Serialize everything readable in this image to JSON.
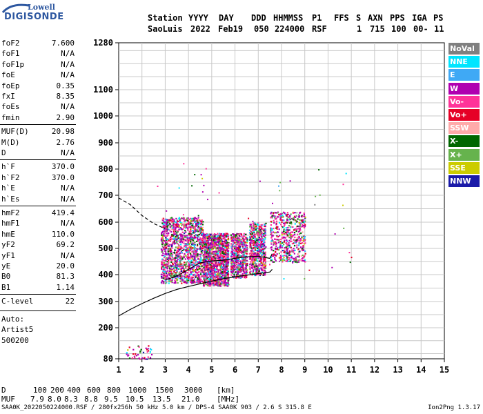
{
  "logo": {
    "top": "Lowell",
    "main": "DIGISONDE"
  },
  "header": {
    "labels": [
      "Station",
      "YYYY",
      "DAY",
      "DDD",
      "HHMMSS",
      "P1",
      "FFS",
      "S",
      "AXN",
      "PPS",
      "IGA",
      "PS"
    ],
    "values": [
      "SaoLuis",
      "2022",
      "Feb19",
      "050",
      "224000",
      "RSF",
      "",
      "1",
      "715",
      "100",
      "00-",
      "11"
    ]
  },
  "params": [
    {
      "label": "foF2",
      "value": "7.600"
    },
    {
      "label": "foF1",
      "value": "N/A"
    },
    {
      "label": "foF1p",
      "value": "N/A"
    },
    {
      "label": "foE",
      "value": "N/A"
    },
    {
      "label": "foEp",
      "value": "0.35"
    },
    {
      "label": "fxI",
      "value": "8.35"
    },
    {
      "label": "foEs",
      "value": "N/A"
    },
    {
      "label": "fmin",
      "value": "2.90"
    },
    {
      "label": "MUF(D)",
      "value": "20.98"
    },
    {
      "label": "M(D)",
      "value": "2.76"
    },
    {
      "label": "D",
      "value": "N/A"
    },
    {
      "label": "h`F",
      "value": "370.0"
    },
    {
      "label": "h`F2",
      "value": "370.0"
    },
    {
      "label": "h`E",
      "value": "N/A"
    },
    {
      "label": "h`Es",
      "value": "N/A"
    },
    {
      "label": "hmF2",
      "value": "419.4"
    },
    {
      "label": "hmF1",
      "value": "N/A"
    },
    {
      "label": "hmE",
      "value": "110.0"
    },
    {
      "label": "yF2",
      "value": "69.2"
    },
    {
      "label": "yF1",
      "value": "N/A"
    },
    {
      "label": "yE",
      "value": "20.0"
    },
    {
      "label": "B0",
      "value": "81.3"
    },
    {
      "label": "B1",
      "value": "1.14"
    },
    {
      "label": "C-level",
      "value": "22"
    }
  ],
  "autoscale": [
    "Auto:",
    "Artist5",
    "500200"
  ],
  "legend": [
    {
      "label": "NoVal",
      "color": "#808080"
    },
    {
      "label": "NNE",
      "color": "#00e5ff"
    },
    {
      "label": "E",
      "color": "#3fa9f5"
    },
    {
      "label": "W",
      "color": "#b000b0"
    },
    {
      "label": "Vo-",
      "color": "#ff3399"
    },
    {
      "label": "Vo+",
      "color": "#e60026"
    },
    {
      "label": "SSW",
      "color": "#ffaaaa"
    },
    {
      "label": "X-",
      "color": "#006600"
    },
    {
      "label": "X+",
      "color": "#66b34d"
    },
    {
      "label": "SSE",
      "color": "#cccc00"
    },
    {
      "label": "NNW",
      "color": "#1a1aa8"
    }
  ],
  "chart_data": {
    "type": "scatter",
    "title": "",
    "xlabel": "",
    "ylabel": "",
    "xlim": [
      1,
      15
    ],
    "ylim": [
      80,
      1280
    ],
    "x_ticks": [
      1,
      2,
      3,
      4,
      5,
      6,
      7,
      8,
      9,
      10,
      11,
      12,
      13,
      14,
      15
    ],
    "y_ticks": [
      80,
      200,
      300,
      400,
      500,
      600,
      700,
      800,
      900,
      1000,
      1100,
      1280
    ],
    "grid": true,
    "echo_clusters": [
      {
        "x_range": [
          2.8,
          4.6
        ],
        "y_range": [
          370,
          620
        ],
        "density": "high"
      },
      {
        "x_range": [
          4.6,
          5.7
        ],
        "y_range": [
          360,
          560
        ],
        "density": "high"
      },
      {
        "x_range": [
          5.8,
          6.5
        ],
        "y_range": [
          390,
          560
        ],
        "density": "medium"
      },
      {
        "x_range": [
          6.6,
          7.3
        ],
        "y_range": [
          400,
          600
        ],
        "density": "medium"
      },
      {
        "x_range": [
          7.5,
          9.0
        ],
        "y_range": [
          450,
          640
        ],
        "density": "medium"
      },
      {
        "x_range": [
          1.3,
          2.4
        ],
        "y_range": [
          80,
          140
        ],
        "density": "low"
      }
    ],
    "series": [
      {
        "style": "solid",
        "x": [
          1.0,
          1.5,
          2.0,
          2.5,
          3.0,
          3.5,
          4.0,
          4.5,
          5.0,
          5.5,
          6.0,
          6.5,
          7.0,
          7.5,
          7.6
        ],
        "y": [
          245,
          270,
          292,
          312,
          330,
          345,
          356,
          366,
          376,
          385,
          392,
          398,
          404,
          410,
          420
        ]
      },
      {
        "style": "dashed",
        "x": [
          1.0,
          1.5,
          2.0,
          2.5,
          3.0
        ],
        "y": [
          690,
          665,
          625,
          595,
          575
        ]
      },
      {
        "style": "solid",
        "x": [
          3.0,
          3.5,
          4.0,
          4.5,
          5.0,
          5.5,
          6.0,
          6.5,
          7.0,
          7.5,
          7.6
        ],
        "y": [
          380,
          395,
          420,
          445,
          452,
          455,
          462,
          468,
          470,
          462,
          480
        ]
      }
    ]
  },
  "distance_table": {
    "d_label": "D",
    "d_values": [
      "100",
      "200",
      "400",
      "600",
      "800",
      "1000",
      "1500",
      "3000"
    ],
    "d_unit": "[km]",
    "muf_label": "MUF",
    "muf_values": [
      "7.9",
      "8.0",
      "8.3",
      "8.8",
      "9.5",
      "10.5",
      "13.5",
      "21.0"
    ],
    "muf_unit": "[MHz]"
  },
  "footer": "SAA0K_2022050224000.RSF / 280fx256h 50 kHz 5.0 km / DPS-4 SAA0K 903 / 2.6 S 315.8 E",
  "version": "Ion2Png 1.3.17"
}
